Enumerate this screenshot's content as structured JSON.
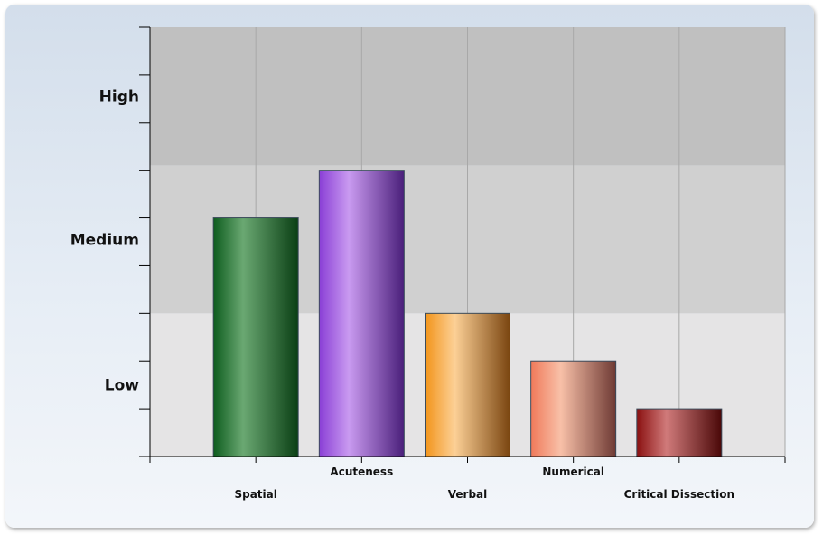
{
  "chart_data": {
    "type": "bar",
    "categories": [
      "Spatial",
      "Acuteness",
      "Verbal",
      "Numerical",
      "Critical Dissection"
    ],
    "values": [
      5.0,
      6.0,
      3.0,
      2.0,
      1.0
    ],
    "ylim": [
      0,
      9
    ],
    "bands": [
      {
        "label": "Low",
        "from": 0,
        "to": 3,
        "color": "#e5e4e5"
      },
      {
        "label": "Medium",
        "from": 3,
        "to": 6.1,
        "color": "#d0d0d0"
      },
      {
        "label": "High",
        "from": 6.1,
        "to": 9,
        "color": "#c0c0c0"
      }
    ],
    "colors": [
      [
        "#0d5c1e",
        "#6aa872",
        "#0a3f14"
      ],
      [
        "#8a3fd6",
        "#c99af0",
        "#4a1f7a"
      ],
      [
        "#f2941a",
        "#fcd096",
        "#7a4510"
      ],
      [
        "#f07a5a",
        "#f8c0a8",
        "#6e3a34"
      ],
      [
        "#8a1010",
        "#d07a7a",
        "#4a0808"
      ]
    ],
    "grid": true
  }
}
